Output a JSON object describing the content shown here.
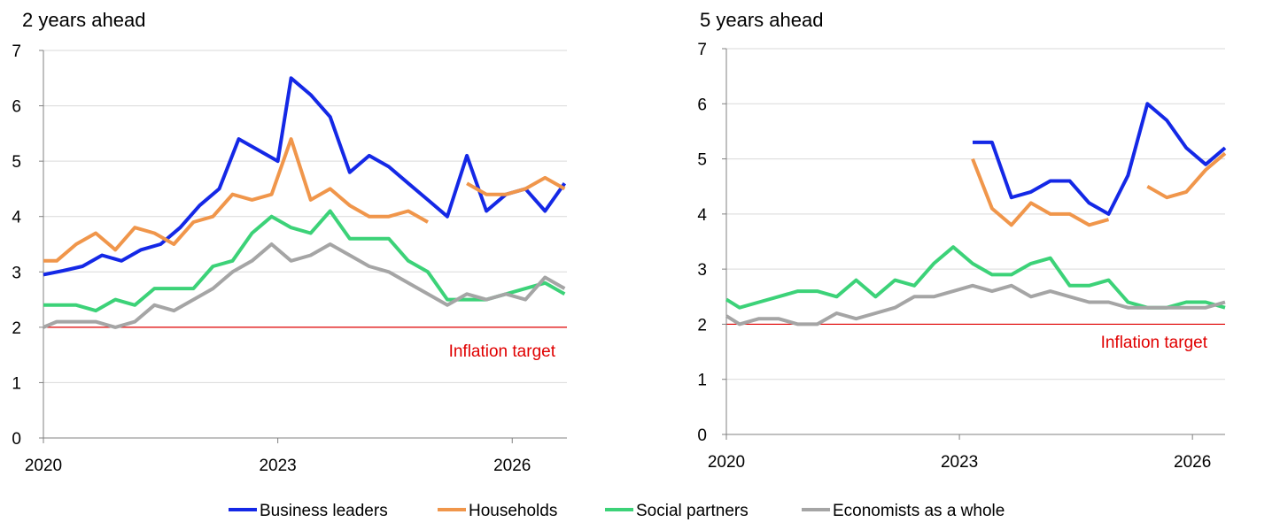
{
  "target_label": "Inflation target",
  "colors": {
    "business": "#1428e6",
    "households": "#f0964b",
    "social": "#3cd278",
    "economists": "#a5a5a5",
    "target": "#e00000",
    "grid": "#d9d9d9",
    "axis": "#808080"
  },
  "legend": [
    {
      "label": "Business leaders",
      "color": "#1428e6"
    },
    {
      "label": "Households",
      "color": "#f0964b"
    },
    {
      "label": "Social partners",
      "color": "#3cd278"
    },
    {
      "label": "Economists as a whole",
      "color": "#a5a5a5"
    }
  ],
  "chart_data": [
    {
      "type": "line",
      "title": "2 years ahead",
      "x_ticks": [
        "2020",
        "2023",
        "2026"
      ],
      "xlim": [
        2020,
        2026.7
      ],
      "ylim": [
        0,
        7
      ],
      "y_ticks": [
        "0",
        "1",
        "2",
        "3",
        "4",
        "5",
        "6",
        "7"
      ],
      "grid": true,
      "target": 2,
      "series": [
        {
          "name": "Business leaders",
          "key": "business",
          "segments": [
            [
              [
                2020,
                2.95
              ],
              [
                2020.25,
                3.02
              ],
              [
                2020.5,
                3.1
              ],
              [
                2020.75,
                3.3
              ],
              [
                2021,
                3.2
              ],
              [
                2021.25,
                3.4
              ],
              [
                2021.5,
                3.5
              ],
              [
                2021.75,
                3.8
              ],
              [
                2022,
                4.2
              ],
              [
                2022.25,
                4.5
              ],
              [
                2022.5,
                5.4
              ],
              [
                2022.75,
                5.2
              ],
              [
                2023,
                5.0
              ],
              [
                2023.17,
                6.5
              ],
              [
                2023.42,
                6.2
              ],
              [
                2023.67,
                5.8
              ],
              [
                2023.92,
                4.8
              ],
              [
                2024.17,
                5.1
              ],
              [
                2024.42,
                4.9
              ],
              [
                2024.67,
                4.6
              ],
              [
                2024.92,
                4.3
              ],
              [
                2025.17,
                4.0
              ],
              [
                2025.42,
                5.1
              ],
              [
                2025.67,
                4.1
              ],
              [
                2025.92,
                4.4
              ],
              [
                2026.17,
                4.5
              ],
              [
                2026.42,
                4.1
              ],
              [
                2026.67,
                4.6
              ]
            ]
          ]
        },
        {
          "name": "Households",
          "key": "households",
          "segments": [
            [
              [
                2020,
                3.2
              ],
              [
                2020.17,
                3.2
              ],
              [
                2020.42,
                3.5
              ],
              [
                2020.67,
                3.7
              ],
              [
                2020.92,
                3.4
              ],
              [
                2021.17,
                3.8
              ],
              [
                2021.42,
                3.7
              ],
              [
                2021.67,
                3.5
              ],
              [
                2021.92,
                3.9
              ],
              [
                2022.17,
                4.0
              ],
              [
                2022.42,
                4.4
              ],
              [
                2022.67,
                4.3
              ],
              [
                2022.92,
                4.4
              ],
              [
                2023.17,
                5.4
              ],
              [
                2023.42,
                4.3
              ],
              [
                2023.67,
                4.5
              ],
              [
                2023.92,
                4.2
              ],
              [
                2024.17,
                4.0
              ],
              [
                2024.42,
                4.0
              ],
              [
                2024.67,
                4.1
              ],
              [
                2024.92,
                3.9
              ]
            ],
            [
              [
                2025.42,
                4.6
              ],
              [
                2025.67,
                4.4
              ],
              [
                2025.92,
                4.4
              ],
              [
                2026.17,
                4.5
              ],
              [
                2026.42,
                4.7
              ],
              [
                2026.67,
                4.5
              ]
            ]
          ]
        },
        {
          "name": "Social partners",
          "key": "social",
          "segments": [
            [
              [
                2020,
                2.4
              ],
              [
                2020.25,
                2.4
              ],
              [
                2020.42,
                2.4
              ],
              [
                2020.67,
                2.3
              ],
              [
                2020.92,
                2.5
              ],
              [
                2021.17,
                2.4
              ],
              [
                2021.42,
                2.7
              ],
              [
                2021.67,
                2.7
              ],
              [
                2021.92,
                2.7
              ],
              [
                2022.17,
                3.1
              ],
              [
                2022.42,
                3.2
              ],
              [
                2022.67,
                3.7
              ],
              [
                2022.92,
                4.0
              ],
              [
                2023.17,
                3.8
              ],
              [
                2023.42,
                3.7
              ],
              [
                2023.67,
                4.1
              ],
              [
                2023.92,
                3.6
              ],
              [
                2024.17,
                3.6
              ],
              [
                2024.42,
                3.6
              ],
              [
                2024.67,
                3.2
              ],
              [
                2024.92,
                3.0
              ],
              [
                2025.17,
                2.5
              ],
              [
                2025.42,
                2.5
              ],
              [
                2025.67,
                2.5
              ],
              [
                2025.92,
                2.6
              ],
              [
                2026.17,
                2.7
              ],
              [
                2026.42,
                2.8
              ],
              [
                2026.67,
                2.6
              ]
            ]
          ]
        },
        {
          "name": "Economists as a whole",
          "key": "economists",
          "segments": [
            [
              [
                2020,
                2.0
              ],
              [
                2020.17,
                2.1
              ],
              [
                2020.42,
                2.1
              ],
              [
                2020.67,
                2.1
              ],
              [
                2020.92,
                2.0
              ],
              [
                2021.17,
                2.1
              ],
              [
                2021.42,
                2.4
              ],
              [
                2021.67,
                2.3
              ],
              [
                2021.92,
                2.5
              ],
              [
                2022.17,
                2.7
              ],
              [
                2022.42,
                3.0
              ],
              [
                2022.67,
                3.2
              ],
              [
                2022.92,
                3.5
              ],
              [
                2023.17,
                3.2
              ],
              [
                2023.42,
                3.3
              ],
              [
                2023.67,
                3.5
              ],
              [
                2023.92,
                3.3
              ],
              [
                2024.17,
                3.1
              ],
              [
                2024.42,
                3.0
              ],
              [
                2024.67,
                2.8
              ],
              [
                2024.92,
                2.6
              ],
              [
                2025.17,
                2.4
              ],
              [
                2025.42,
                2.6
              ],
              [
                2025.67,
                2.5
              ],
              [
                2025.92,
                2.6
              ],
              [
                2026.17,
                2.5
              ],
              [
                2026.42,
                2.9
              ],
              [
                2026.67,
                2.7
              ]
            ]
          ]
        }
      ]
    },
    {
      "type": "line",
      "title": "5 years ahead",
      "x_ticks": [
        "2020",
        "2023",
        "2026"
      ],
      "xlim": [
        2020,
        2026.42
      ],
      "ylim": [
        0,
        7
      ],
      "y_ticks": [
        "0",
        "1",
        "2",
        "3",
        "4",
        "5",
        "6",
        "7"
      ],
      "grid": true,
      "target": 2,
      "series": [
        {
          "name": "Business leaders",
          "key": "business",
          "segments": [
            [
              [
                2023.17,
                5.3
              ],
              [
                2023.42,
                5.3
              ],
              [
                2023.67,
                4.3
              ],
              [
                2023.92,
                4.4
              ],
              [
                2024.17,
                4.6
              ],
              [
                2024.42,
                4.6
              ],
              [
                2024.67,
                4.2
              ],
              [
                2024.92,
                4.0
              ],
              [
                2025.17,
                4.7
              ],
              [
                2025.42,
                6.0
              ],
              [
                2025.67,
                5.7
              ],
              [
                2025.92,
                5.2
              ],
              [
                2026.17,
                4.9
              ],
              [
                2026.42,
                5.2
              ]
            ]
          ]
        },
        {
          "name": "Households",
          "key": "households",
          "segments": [
            [
              [
                2023.17,
                5.0
              ],
              [
                2023.42,
                4.1
              ],
              [
                2023.67,
                3.8
              ],
              [
                2023.92,
                4.2
              ],
              [
                2024.17,
                4.0
              ],
              [
                2024.42,
                4.0
              ],
              [
                2024.67,
                3.8
              ],
              [
                2024.92,
                3.9
              ]
            ],
            [
              [
                2025.42,
                4.5
              ],
              [
                2025.67,
                4.3
              ],
              [
                2025.92,
                4.4
              ],
              [
                2026.17,
                4.8
              ],
              [
                2026.42,
                5.1
              ]
            ]
          ]
        },
        {
          "name": "Social partners",
          "key": "social",
          "segments": [
            [
              [
                2020,
                2.45
              ],
              [
                2020.17,
                2.3
              ],
              [
                2020.42,
                2.4
              ],
              [
                2020.67,
                2.5
              ],
              [
                2020.92,
                2.6
              ],
              [
                2021.17,
                2.6
              ],
              [
                2021.42,
                2.5
              ],
              [
                2021.67,
                2.8
              ],
              [
                2021.92,
                2.5
              ],
              [
                2022.17,
                2.8
              ],
              [
                2022.42,
                2.7
              ],
              [
                2022.67,
                3.1
              ],
              [
                2022.92,
                3.4
              ],
              [
                2023.17,
                3.1
              ],
              [
                2023.42,
                2.9
              ],
              [
                2023.67,
                2.9
              ],
              [
                2023.92,
                3.1
              ],
              [
                2024.17,
                3.2
              ],
              [
                2024.42,
                2.7
              ],
              [
                2024.67,
                2.7
              ],
              [
                2024.92,
                2.8
              ],
              [
                2025.17,
                2.4
              ],
              [
                2025.42,
                2.3
              ],
              [
                2025.67,
                2.3
              ],
              [
                2025.92,
                2.4
              ],
              [
                2026.17,
                2.4
              ],
              [
                2026.42,
                2.3
              ]
            ]
          ]
        },
        {
          "name": "Economists as a whole",
          "key": "economists",
          "segments": [
            [
              [
                2020,
                2.15
              ],
              [
                2020.17,
                2.0
              ],
              [
                2020.42,
                2.1
              ],
              [
                2020.67,
                2.1
              ],
              [
                2020.92,
                2.0
              ],
              [
                2021.17,
                2.0
              ],
              [
                2021.42,
                2.2
              ],
              [
                2021.67,
                2.1
              ],
              [
                2021.92,
                2.2
              ],
              [
                2022.17,
                2.3
              ],
              [
                2022.42,
                2.5
              ],
              [
                2022.67,
                2.5
              ],
              [
                2022.92,
                2.6
              ],
              [
                2023.17,
                2.7
              ],
              [
                2023.42,
                2.6
              ],
              [
                2023.67,
                2.7
              ],
              [
                2023.92,
                2.5
              ],
              [
                2024.17,
                2.6
              ],
              [
                2024.42,
                2.5
              ],
              [
                2024.67,
                2.4
              ],
              [
                2024.92,
                2.4
              ],
              [
                2025.17,
                2.3
              ],
              [
                2025.42,
                2.3
              ],
              [
                2025.67,
                2.3
              ],
              [
                2025.92,
                2.3
              ],
              [
                2026.17,
                2.3
              ],
              [
                2026.42,
                2.4
              ]
            ]
          ]
        }
      ]
    }
  ]
}
